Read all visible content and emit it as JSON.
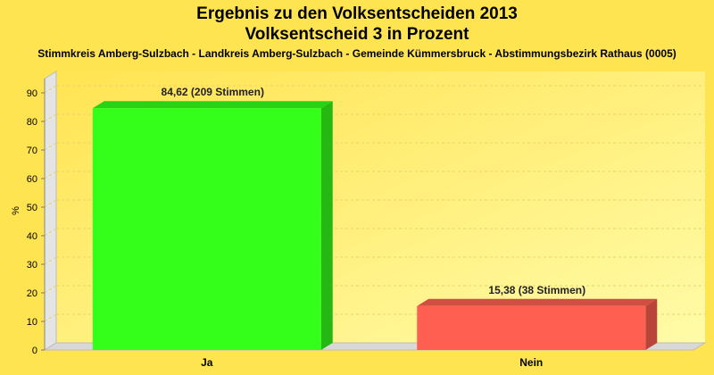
{
  "chart_data": {
    "type": "bar",
    "title": "Ergebnis zu den Volksentscheiden 2013",
    "subtitle": "Volksentscheid 3 in Prozent",
    "caption": "Stimmkreis Amberg-Sulzbach - Landkreis Amberg-Sulzbach - Gemeinde Kümmersbruck - Abstimmungsbezirk Rathaus (0005)",
    "ylabel": "%",
    "xlabel": "",
    "ylim": [
      0,
      95
    ],
    "yticks": [
      0,
      10,
      20,
      30,
      40,
      50,
      60,
      70,
      80,
      90
    ],
    "categories": [
      "Ja",
      "Nein"
    ],
    "values": [
      84.62,
      15.38
    ],
    "data_labels": [
      "84,62 (209 Stimmen)",
      "15,38 (38 Stimmen)"
    ],
    "colors": [
      "#33FF1A",
      "#FF5F50"
    ],
    "grid": true,
    "legend": "none"
  }
}
